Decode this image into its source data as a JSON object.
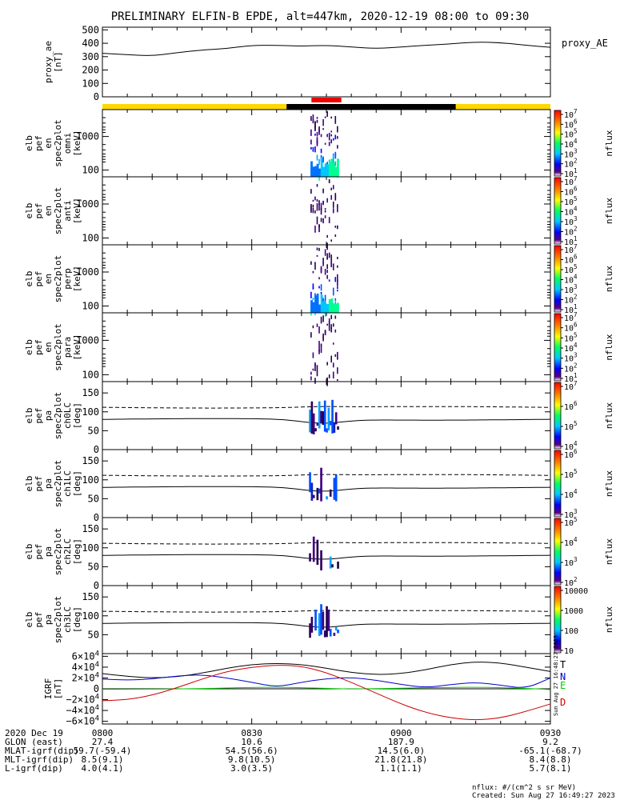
{
  "title": "PRELIMINARY ELFIN-B EPDE, alt=447km, 2020-12-19 08:00 to 09:30",
  "chart_data": [
    {
      "type": "line",
      "panel": "proxy_ae",
      "ylabel": [
        "proxy_ae",
        "[nT]"
      ],
      "yticks": [
        "500",
        "400",
        "300",
        "200",
        "100",
        "0"
      ],
      "ylim": [
        0,
        520
      ],
      "right_label": "proxy_AE",
      "x": [
        0,
        5,
        10,
        15,
        20,
        25,
        30,
        35,
        40,
        45,
        50,
        55,
        60,
        65,
        70,
        75,
        80,
        85,
        90
      ],
      "values": [
        325,
        315,
        305,
        330,
        350,
        360,
        385,
        385,
        378,
        385,
        372,
        360,
        372,
        385,
        395,
        410,
        405,
        385,
        370
      ]
    },
    {
      "type": "heatmap",
      "panel": "elb_pef_en_spec2plot_omni",
      "ylabel": [
        "elb",
        "pef",
        "en",
        "spec2plot",
        "omni",
        "[keV]"
      ],
      "yticks": [
        "1000",
        "100"
      ],
      "colorbar": {
        "label": "nflux",
        "ticks": [
          "10^7",
          "10^6",
          "10^5",
          "10^4",
          "10^3",
          "10^2",
          "10^1"
        ]
      }
    },
    {
      "type": "heatmap",
      "panel": "elb_pef_en_spec2plot_anti",
      "ylabel": [
        "elb",
        "pef",
        "en",
        "spec2plot",
        "anti",
        "[keV]"
      ],
      "yticks": [
        "1000",
        "100"
      ],
      "colorbar": {
        "label": "nflux",
        "ticks": [
          "10^7",
          "10^6",
          "10^5",
          "10^4",
          "10^3",
          "10^2",
          "10^1"
        ]
      }
    },
    {
      "type": "heatmap",
      "panel": "elb_pef_en_spec2plot_perp",
      "ylabel": [
        "elb",
        "pef",
        "en",
        "spec2plot",
        "perp",
        "[keV]"
      ],
      "yticks": [
        "1000",
        "100"
      ],
      "colorbar": {
        "label": "nflux",
        "ticks": [
          "10^7",
          "10^6",
          "10^5",
          "10^4",
          "10^3",
          "10^2",
          "10^1"
        ]
      }
    },
    {
      "type": "heatmap",
      "panel": "elb_pef_en_spec2plot_para",
      "ylabel": [
        "elb",
        "pef",
        "en",
        "spec2plot",
        "para",
        "[keV]"
      ],
      "yticks": [
        "1000",
        "100"
      ],
      "colorbar": {
        "label": "nflux",
        "ticks": [
          "10^7",
          "10^6",
          "10^5",
          "10^4",
          "10^3",
          "10^2",
          "10^1"
        ]
      }
    },
    {
      "type": "heatmap",
      "panel": "elb_pef_pa_spec2plot_ch0LC",
      "ylabel": [
        "elb",
        "pef",
        "pa",
        "spec2plot",
        "ch0LC",
        "[deg]"
      ],
      "yticks": [
        "150",
        "100",
        "50",
        "0"
      ],
      "ylim": [
        0,
        180
      ],
      "colorbar": {
        "label": "nflux",
        "ticks": [
          "10^7",
          "10^6",
          "10^5",
          "10^4"
        ]
      }
    },
    {
      "type": "heatmap",
      "panel": "elb_pef_pa_spec2plot_ch1LC",
      "ylabel": [
        "elb",
        "pef",
        "pa",
        "spec2plot",
        "ch1LC",
        "[deg]"
      ],
      "yticks": [
        "150",
        "100",
        "50",
        "0"
      ],
      "ylim": [
        0,
        180
      ],
      "colorbar": {
        "label": "nflux",
        "ticks": [
          "10^6",
          "10^5",
          "10^4",
          "10^3"
        ]
      }
    },
    {
      "type": "heatmap",
      "panel": "elb_pef_pa_spec2plot_ch2LC",
      "ylabel": [
        "elb",
        "pef",
        "pa",
        "spec2plot",
        "ch2LC",
        "[deg]"
      ],
      "yticks": [
        "150",
        "100",
        "50",
        "0"
      ],
      "ylim": [
        0,
        180
      ],
      "colorbar": {
        "label": "nflux",
        "ticks": [
          "10^5",
          "10^4",
          "10^3",
          "10^2"
        ]
      }
    },
    {
      "type": "heatmap",
      "panel": "elb_pef_pa_spec2plot_ch3LC",
      "ylabel": [
        "elb",
        "pef",
        "pa",
        "spec2plot",
        "ch3LC",
        "[deg]"
      ],
      "yticks": [
        "150",
        "100",
        "50"
      ],
      "ylim": [
        0,
        180
      ],
      "colorbar": {
        "label": "nflux",
        "ticks": [
          "10000",
          "1000",
          "100",
          "10"
        ]
      }
    },
    {
      "type": "line",
      "panel": "igrf",
      "ylabel": [
        "IGRF",
        "[nT]"
      ],
      "yticks": [
        "6×10^4",
        "4×10^4",
        "2×10^4",
        "0",
        "−2×10^4",
        "−4×10^4",
        "−6×10^4"
      ],
      "ylim": [
        -65000,
        65000
      ],
      "x": [
        0,
        5,
        10,
        15,
        20,
        25,
        30,
        35,
        40,
        45,
        50,
        55,
        60,
        65,
        70,
        75,
        80,
        85,
        90
      ],
      "series": [
        {
          "name": "T",
          "color": "#000000",
          "values": [
            28000,
            23000,
            20000,
            22000,
            29000,
            38000,
            45000,
            47000,
            45000,
            38000,
            30000,
            26000,
            28000,
            35000,
            45000,
            50000,
            48000,
            40000,
            32000
          ]
        },
        {
          "name": "N",
          "color": "#0000cc",
          "values": [
            18000,
            16000,
            18000,
            24000,
            26000,
            20000,
            12000,
            3000,
            12000,
            19000,
            21000,
            16000,
            8000,
            2000,
            8000,
            12000,
            7000,
            0,
            20000
          ]
        },
        {
          "name": "E",
          "color": "#00cc00",
          "values": [
            -1000,
            -900,
            -700,
            -300,
            500,
            1500,
            2500,
            3000,
            2000,
            800,
            -300,
            200,
            1200,
            2000,
            2500,
            3000,
            2000,
            1000,
            -1500
          ]
        },
        {
          "name": "D",
          "color": "#cc0000",
          "values": [
            -22000,
            -20000,
            -12000,
            2000,
            18000,
            32000,
            40000,
            44000,
            42000,
            30000,
            12000,
            -8000,
            -28000,
            -44000,
            -54000,
            -58000,
            -54000,
            -42000,
            -28000
          ]
        }
      ]
    }
  ],
  "xaxis": {
    "ticks": [
      "0800",
      "0830",
      "0900",
      "0930"
    ],
    "rows": [
      {
        "label": "2020 Dec 19",
        "values": [
          "0800",
          "0830",
          "0900",
          "0930"
        ]
      },
      {
        "label": "GLON (east)",
        "values": [
          "27.4",
          "10.6",
          "187.9",
          "9.2"
        ]
      },
      {
        "label": "MLAT-igrf(dip)",
        "values": [
          "59.7(-59.4)",
          "54.5(56.6)",
          "14.5(6.0)",
          "-65.1(-68.7)"
        ]
      },
      {
        "label": "MLT-igrf(dip)",
        "values": [
          "8.5(9.1)",
          "9.8(10.5)",
          "21.8(21.8)",
          "8.4(8.8)"
        ]
      },
      {
        "label": "L-igrf(dip)",
        "values": [
          "4.0(4.1)",
          "3.0(3.5)",
          "1.1(1.1)",
          "5.7(8.1)"
        ]
      }
    ]
  },
  "footer": {
    "units": "nflux: #/(cm^2 s sr MeV)",
    "created": "Created: Sun Aug 27 16:49:27 2023",
    "side_stamp": "Sun Aug 27 16:48:27 2023"
  },
  "colors": {
    "sunlit": "#ffd800",
    "shadow": "#000000",
    "science": "#ee0000"
  }
}
